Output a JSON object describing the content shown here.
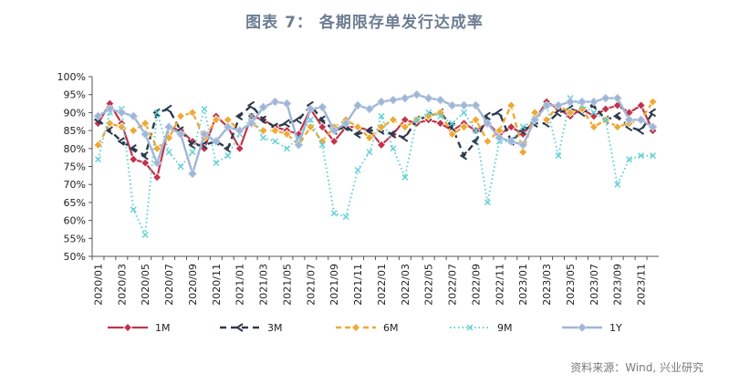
{
  "header": {
    "title": "图表 7： 各期限存单发行达成率"
  },
  "footer": {
    "source": "资料来源：Wind, 兴业研究"
  },
  "colors": {
    "1M": "#c1344b",
    "3M": "#2d3a4d",
    "6M": "#f0a934",
    "9M": "#5fd0d6",
    "1Y": "#9fb6d6"
  },
  "chart_data": {
    "type": "line",
    "title": "图表 7： 各期限存单发行达成率",
    "xlabel": "",
    "ylabel": "",
    "ylim": [
      50,
      100
    ],
    "y_ticks": [
      "50%",
      "55%",
      "60%",
      "65%",
      "70%",
      "75%",
      "80%",
      "85%",
      "90%",
      "95%",
      "100%"
    ],
    "x_tick_labels": [
      "2020/01",
      "2020/03",
      "2020/05",
      "2020/07",
      "2020/09",
      "2020/11",
      "2021/01",
      "2021/03",
      "2021/05",
      "2021/07",
      "2021/09",
      "2021/11",
      "2022/01",
      "2022/03",
      "2022/05",
      "2022/07",
      "2022/09",
      "2022/11",
      "2023/01",
      "2023/03",
      "2023/05",
      "2023/07",
      "2023/09",
      "2023/11"
    ],
    "x": [
      "2020/01",
      "2020/02",
      "2020/03",
      "2020/04",
      "2020/05",
      "2020/06",
      "2020/07",
      "2020/08",
      "2020/09",
      "2020/10",
      "2020/11",
      "2020/12",
      "2021/01",
      "2021/02",
      "2021/03",
      "2021/04",
      "2021/05",
      "2021/06",
      "2021/07",
      "2021/08",
      "2021/09",
      "2021/10",
      "2021/11",
      "2021/12",
      "2022/01",
      "2022/02",
      "2022/03",
      "2022/04",
      "2022/05",
      "2022/06",
      "2022/07",
      "2022/08",
      "2022/09",
      "2022/10",
      "2022/11",
      "2022/12",
      "2023/01",
      "2023/02",
      "2023/03",
      "2023/04",
      "2023/05",
      "2023/06",
      "2023/07",
      "2023/08",
      "2023/09",
      "2023/10",
      "2023/11",
      "2023/12"
    ],
    "legend_position": "bottom",
    "grid": false,
    "series": [
      {
        "name": "1M",
        "values": [
          87,
          92.5,
          87,
          77,
          76,
          72,
          86,
          85,
          82,
          80,
          89,
          86,
          80,
          89,
          88,
          86,
          85,
          84,
          91,
          86,
          82,
          86,
          86,
          85,
          81,
          84,
          88,
          87,
          88,
          87,
          85,
          87,
          85,
          87,
          84,
          86,
          84,
          88,
          93,
          91,
          89,
          91,
          89,
          91,
          92,
          90,
          92,
          85
        ]
      },
      {
        "name": "3M",
        "values": [
          88,
          85,
          82,
          80,
          78,
          90,
          91,
          85,
          81,
          81,
          82,
          80,
          89,
          92,
          88,
          86,
          87,
          88,
          92,
          88,
          85,
          86,
          84,
          85,
          85,
          84,
          83,
          88,
          89,
          90,
          86,
          78,
          82,
          89,
          90,
          82,
          85,
          87,
          87,
          90,
          91,
          90,
          92,
          88,
          89,
          86,
          85,
          90
        ]
      },
      {
        "name": "6M",
        "values": [
          81,
          87,
          86,
          85,
          87,
          80,
          83,
          89,
          90,
          83,
          88,
          88,
          85,
          87,
          85,
          85,
          84,
          81,
          86,
          82,
          86,
          88,
          86,
          83,
          86,
          88,
          86,
          88,
          89,
          90,
          84,
          86,
          88,
          82,
          85,
          92,
          79,
          90,
          88,
          92,
          90,
          91,
          86,
          88,
          86,
          87,
          88,
          93
        ]
      },
      {
        "name": "9M",
        "values": [
          77,
          90,
          91,
          63,
          56,
          90,
          79,
          75,
          79,
          91,
          76,
          78,
          84,
          89,
          83,
          82,
          80,
          83,
          88,
          81,
          62,
          61,
          74,
          79,
          89,
          80,
          72,
          88,
          90,
          89,
          87,
          90,
          85,
          65,
          82,
          82,
          86,
          88,
          92,
          78,
          94,
          92,
          90,
          88,
          70,
          77,
          78,
          78
        ]
      },
      {
        "name": "1Y",
        "values": [
          89,
          91,
          90,
          89,
          84,
          76,
          86,
          84,
          73,
          84,
          82,
          86,
          85,
          87,
          91.5,
          93,
          92.5,
          81,
          91,
          91.5,
          85,
          87,
          92,
          91,
          93,
          93.5,
          94,
          95,
          94,
          93.5,
          92,
          92,
          92,
          87,
          83,
          82,
          81,
          88,
          92,
          92,
          93,
          93,
          93,
          94,
          94,
          88,
          88,
          86
        ]
      }
    ]
  }
}
